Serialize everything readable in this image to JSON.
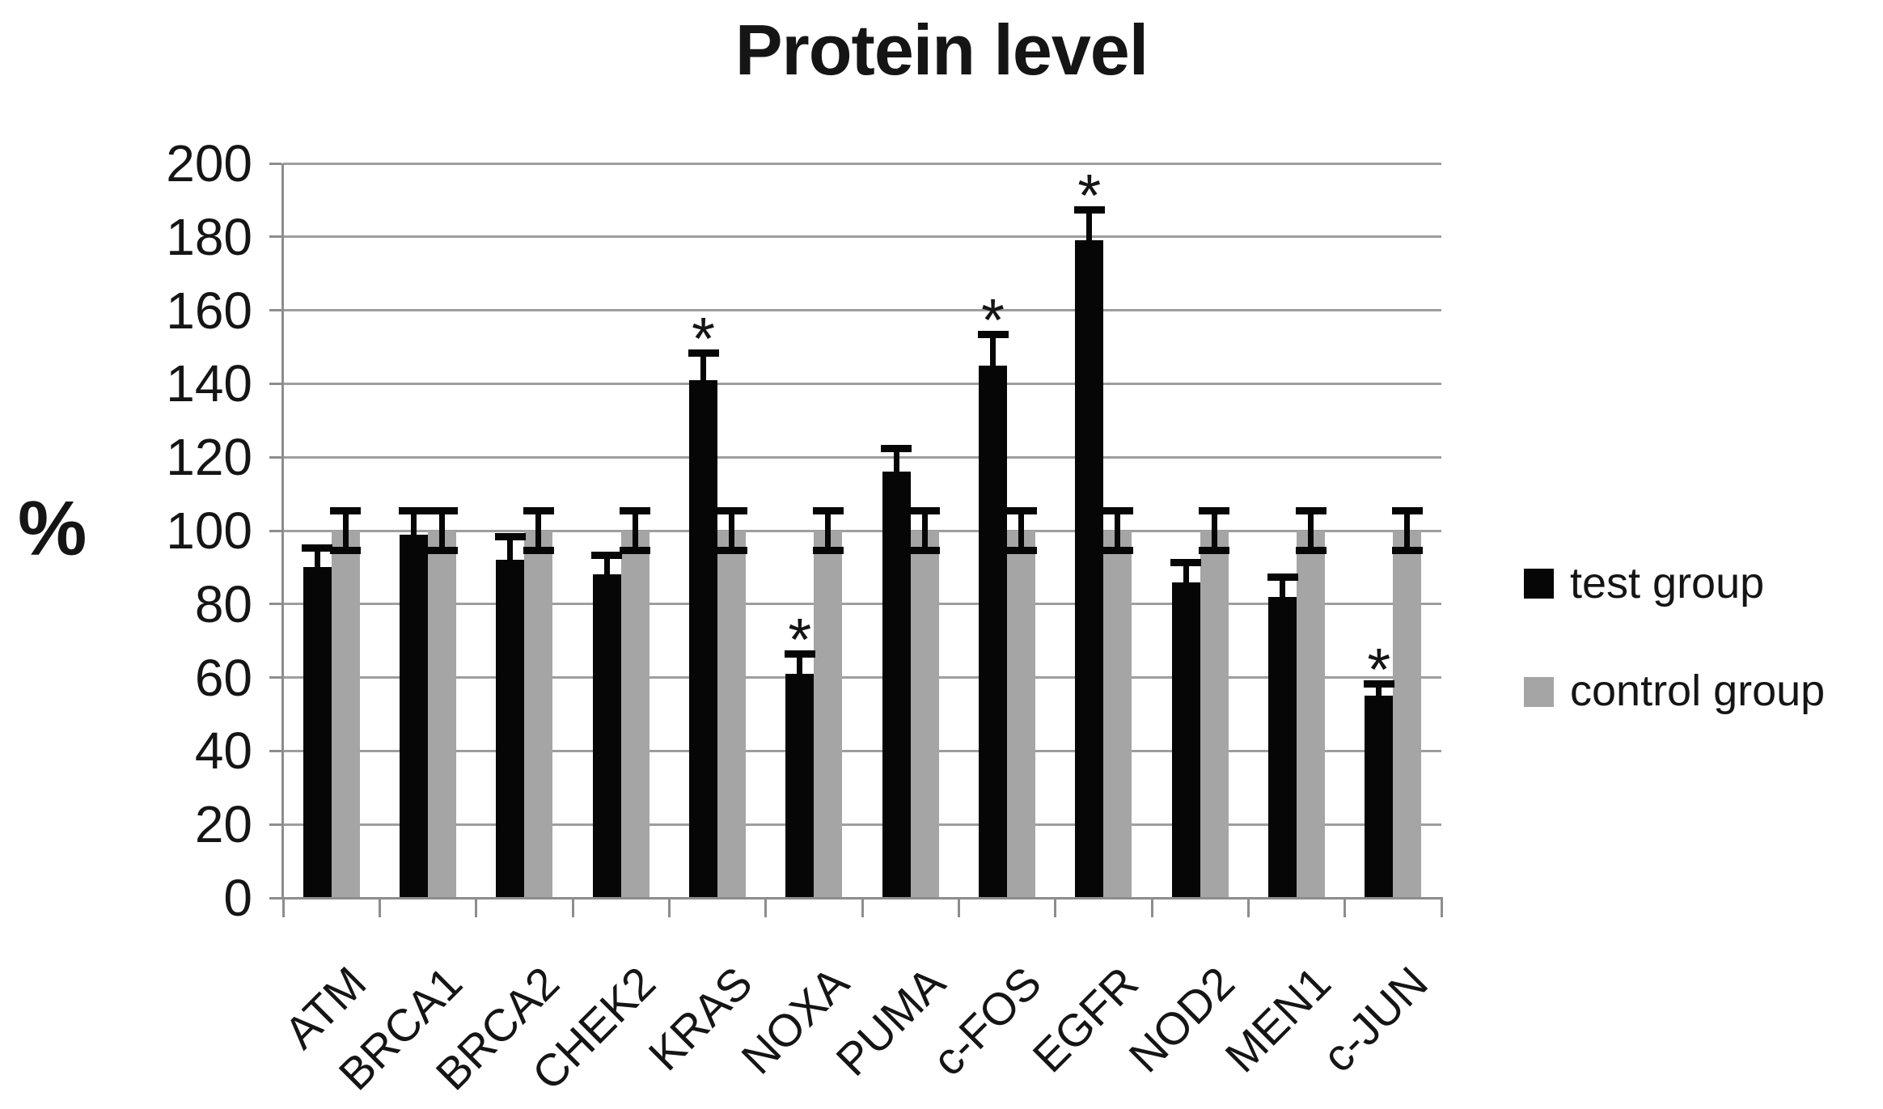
{
  "title": "Protein level",
  "y_axis_title": "%",
  "significance_marker": "*",
  "colors": {
    "test_series": "#060606",
    "control_series": "#a5a5a5",
    "gridline": "#9e9e9e",
    "axis": "#8d8d8d",
    "text": "#151515"
  },
  "legend": {
    "items": [
      {
        "label": "test group",
        "color": "#060606"
      },
      {
        "label": "control group",
        "color": "#a5a5a5"
      }
    ]
  },
  "chart_data": {
    "type": "bar",
    "title": "Protein level",
    "xlabel": "",
    "ylabel": "%",
    "ylim": [
      0,
      200
    ],
    "ytick_step": 20,
    "grid": true,
    "legend_position": "right",
    "categories": [
      "ATM",
      "BRCA1",
      "BRCA2",
      "CHEK2",
      "KRAS",
      "NOXA",
      "PUMA",
      "c-FOS",
      "EGFR",
      "NOD2",
      "MEN1",
      "c-JUN"
    ],
    "series": [
      {
        "name": "test group",
        "color": "#060606",
        "values": [
          90,
          99,
          92,
          88,
          141,
          61,
          116,
          145,
          179,
          86,
          82,
          55
        ],
        "errors_plus": [
          5,
          6,
          6,
          5,
          7,
          5,
          6,
          8,
          8,
          5,
          5,
          3
        ],
        "significant": [
          false,
          false,
          false,
          false,
          true,
          true,
          false,
          true,
          true,
          false,
          false,
          true
        ]
      },
      {
        "name": "control group",
        "color": "#a5a5a5",
        "values": [
          100,
          100,
          100,
          100,
          100,
          100,
          100,
          100,
          100,
          100,
          100,
          100
        ],
        "errors_plus": [
          5,
          5,
          5,
          5,
          5,
          5,
          5,
          5,
          5,
          5,
          5,
          5
        ],
        "errors_minus": [
          5,
          5,
          5,
          5,
          5,
          5,
          5,
          5,
          5,
          5,
          5,
          5
        ],
        "significant": [
          false,
          false,
          false,
          false,
          false,
          false,
          false,
          false,
          false,
          false,
          false,
          false
        ]
      }
    ]
  }
}
